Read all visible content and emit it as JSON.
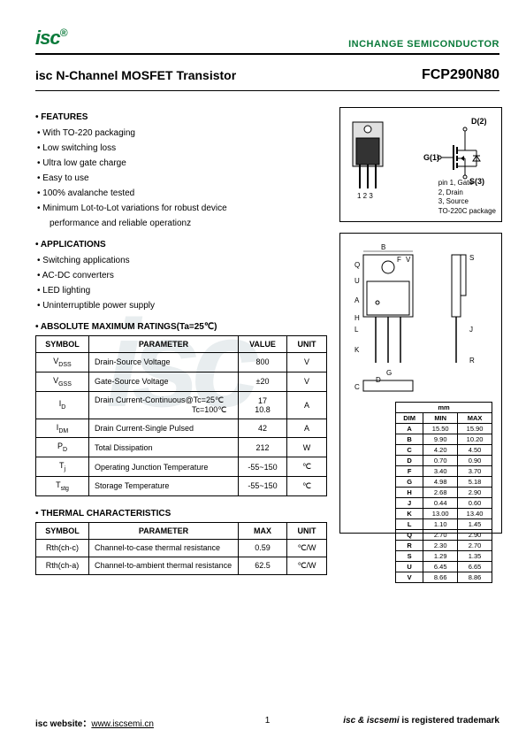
{
  "header": {
    "logo_text": "isc",
    "logo_reg": "®",
    "brand": "INCHANGE SEMICONDUCTOR"
  },
  "title": {
    "left": "isc N-Channel MOSFET Transistor",
    "right": "FCP290N80"
  },
  "features": {
    "heading": "FEATURES",
    "items": [
      "With TO-220 packaging",
      "Low switching loss",
      "Ultra low gate charge",
      "Easy to use",
      "100% avalanche tested",
      "Minimum Lot-to-Lot variations for robust device",
      "performance and reliable operationz"
    ]
  },
  "applications": {
    "heading": "APPLICATIONS",
    "items": [
      "Switching applications",
      "AC-DC converters",
      "LED lighting",
      "Uninterruptible power supply"
    ]
  },
  "ratings": {
    "heading": "ABSOLUTE MAXIMUM RATINGS(Ta=25℃)",
    "cols": [
      "SYMBOL",
      "PARAMETER",
      "VALUE",
      "UNIT"
    ],
    "rows": [
      {
        "sym": "V",
        "sub": "DSS",
        "param": "Drain-Source Voltage",
        "value": "800",
        "unit": "V"
      },
      {
        "sym": "V",
        "sub": "GSS",
        "param": "Gate-Source Voltage",
        "value": "±20",
        "unit": "V"
      },
      {
        "sym": "I",
        "sub": "D",
        "param": "Drain Current-Continuous@Tc=25℃\nTc=100℃",
        "value": "17\n10.8",
        "unit": "A"
      },
      {
        "sym": "I",
        "sub": "DM",
        "param": "Drain Current-Single Pulsed",
        "value": "42",
        "unit": "A"
      },
      {
        "sym": "P",
        "sub": "D",
        "param": "Total Dissipation",
        "value": "212",
        "unit": "W"
      },
      {
        "sym": "T",
        "sub": "j",
        "param": "Operating Junction Temperature",
        "value": "-55~150",
        "unit": "℃"
      },
      {
        "sym": "T",
        "sub": "stg",
        "param": "Storage Temperature",
        "value": "-55~150",
        "unit": "℃"
      }
    ]
  },
  "thermal": {
    "heading": "THERMAL CHARACTERISTICS",
    "cols": [
      "SYMBOL",
      "PARAMETER",
      "MAX",
      "UNIT"
    ],
    "rows": [
      {
        "sym": "Rth(ch-c)",
        "param": "Channel-to-case thermal resistance",
        "max": "0.59",
        "unit": "℃/W"
      },
      {
        "sym": "Rth(ch-a)",
        "param": "Channel-to-ambient thermal resistance",
        "max": "62.5",
        "unit": "℃/W"
      }
    ]
  },
  "package": {
    "pins_label": "1 2 3",
    "d_label": "D(2)",
    "g_label": "G(1)",
    "s_label": "S(3)",
    "pin_desc": [
      "pin 1, Gate",
      "2, Drain",
      "3, Source",
      "TO-220C package"
    ]
  },
  "dimensions": {
    "header": "mm",
    "cols": [
      "DIM",
      "MIN",
      "MAX"
    ],
    "rows": [
      [
        "A",
        "15.50",
        "15.90"
      ],
      [
        "B",
        "9.90",
        "10.20"
      ],
      [
        "C",
        "4.20",
        "4.50"
      ],
      [
        "D",
        "0.70",
        "0.90"
      ],
      [
        "F",
        "3.40",
        "3.70"
      ],
      [
        "G",
        "4.98",
        "5.18"
      ],
      [
        "H",
        "2.68",
        "2.90"
      ],
      [
        "J",
        "0.44",
        "0.60"
      ],
      [
        "K",
        "13.00",
        "13.40"
      ],
      [
        "L",
        "1.10",
        "1.45"
      ],
      [
        "Q",
        "2.70",
        "2.90"
      ],
      [
        "R",
        "2.30",
        "2.70"
      ],
      [
        "S",
        "1.29",
        "1.35"
      ],
      [
        "U",
        "6.45",
        "6.65"
      ],
      [
        "V",
        "8.66",
        "8.86"
      ]
    ]
  },
  "footer": {
    "left_label": "isc website：",
    "left_url": "www.iscsemi.cn",
    "page": "1",
    "right_prefix": "isc & iscsemi",
    "right_suffix": " is registered trademark"
  }
}
